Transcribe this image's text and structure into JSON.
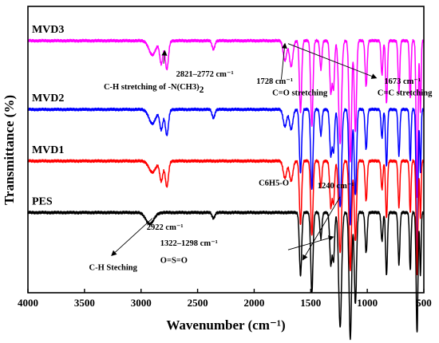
{
  "chart_data": {
    "type": "line",
    "xlabel": "Wavenumber (cm⁻¹)",
    "ylabel": "Transmittance (%)",
    "xlim": [
      4000,
      500
    ],
    "x_reversed": true,
    "x_ticks": [
      "4000",
      "3500",
      "3000",
      "2500",
      "2000",
      "1500",
      "1000",
      "500"
    ],
    "y_ticks_shown": false,
    "series": [
      {
        "name": "MVD3",
        "color": "#ff00ff",
        "baseline": 0.88,
        "peaks": [
          [
            2900,
            0.05,
            30
          ],
          [
            2821,
            0.08,
            14
          ],
          [
            2772,
            0.1,
            14
          ],
          [
            2360,
            0.03,
            12
          ],
          [
            1728,
            0.07,
            15
          ],
          [
            1673,
            0.09,
            15
          ],
          [
            1590,
            0.25,
            10
          ],
          [
            1490,
            0.3,
            10
          ],
          [
            1410,
            0.1,
            9
          ],
          [
            1322,
            0.18,
            10
          ],
          [
            1298,
            0.16,
            9
          ],
          [
            1240,
            0.36,
            13
          ],
          [
            1150,
            0.42,
            11
          ],
          [
            1105,
            0.32,
            10
          ],
          [
            1010,
            0.16,
            9
          ],
          [
            870,
            0.12,
            8
          ],
          [
            830,
            0.22,
            8
          ],
          [
            720,
            0.18,
            8
          ],
          [
            620,
            0.2,
            7
          ],
          [
            560,
            0.55,
            8
          ],
          [
            530,
            0.25,
            6
          ]
        ]
      },
      {
        "name": "MVD2",
        "color": "#0000ff",
        "baseline": 0.64,
        "peaks": [
          [
            2900,
            0.05,
            30
          ],
          [
            2821,
            0.07,
            14
          ],
          [
            2772,
            0.09,
            14
          ],
          [
            2360,
            0.03,
            12
          ],
          [
            1728,
            0.06,
            15
          ],
          [
            1673,
            0.07,
            15
          ],
          [
            1590,
            0.22,
            10
          ],
          [
            1490,
            0.28,
            10
          ],
          [
            1410,
            0.09,
            9
          ],
          [
            1322,
            0.16,
            10
          ],
          [
            1298,
            0.14,
            9
          ],
          [
            1240,
            0.34,
            13
          ],
          [
            1150,
            0.4,
            11
          ],
          [
            1105,
            0.3,
            10
          ],
          [
            1010,
            0.14,
            9
          ],
          [
            870,
            0.1,
            8
          ],
          [
            830,
            0.2,
            8
          ],
          [
            720,
            0.16,
            8
          ],
          [
            620,
            0.18,
            7
          ],
          [
            560,
            0.52,
            8
          ],
          [
            530,
            0.22,
            6
          ]
        ]
      },
      {
        "name": "MVD1",
        "color": "#ff0000",
        "baseline": 0.46,
        "peaks": [
          [
            2900,
            0.04,
            30
          ],
          [
            2821,
            0.07,
            14
          ],
          [
            2772,
            0.09,
            14
          ],
          [
            1728,
            0.06,
            15
          ],
          [
            1673,
            0.07,
            15
          ],
          [
            1590,
            0.22,
            10
          ],
          [
            1490,
            0.26,
            10
          ],
          [
            1410,
            0.09,
            9
          ],
          [
            1322,
            0.16,
            10
          ],
          [
            1298,
            0.14,
            9
          ],
          [
            1240,
            0.32,
            13
          ],
          [
            1150,
            0.38,
            11
          ],
          [
            1105,
            0.28,
            10
          ],
          [
            1010,
            0.14,
            9
          ],
          [
            870,
            0.1,
            8
          ],
          [
            830,
            0.2,
            8
          ],
          [
            720,
            0.16,
            8
          ],
          [
            620,
            0.18,
            7
          ],
          [
            560,
            0.4,
            8
          ],
          [
            530,
            0.2,
            6
          ]
        ]
      },
      {
        "name": "PES",
        "color": "#000000",
        "baseline": 0.28,
        "peaks": [
          [
            2922,
            0.04,
            35
          ],
          [
            2360,
            0.02,
            12
          ],
          [
            1590,
            0.22,
            10
          ],
          [
            1490,
            0.28,
            10
          ],
          [
            1410,
            0.09,
            9
          ],
          [
            1322,
            0.18,
            10
          ],
          [
            1298,
            0.16,
            9
          ],
          [
            1240,
            0.4,
            13
          ],
          [
            1150,
            0.44,
            11
          ],
          [
            1105,
            0.32,
            10
          ],
          [
            1010,
            0.14,
            9
          ],
          [
            870,
            0.1,
            8
          ],
          [
            830,
            0.22,
            8
          ],
          [
            720,
            0.18,
            8
          ],
          [
            620,
            0.2,
            7
          ],
          [
            560,
            0.42,
            8
          ],
          [
            530,
            0.22,
            6
          ]
        ]
      }
    ],
    "annotations": [
      {
        "text": "2821–2772 cm⁻¹",
        "x": 2690,
        "y": 0.755,
        "arrow_from": [
          2800,
          0.8
        ],
        "arrow_to": [
          2790,
          0.845
        ]
      },
      {
        "text": "C-H stretching of -N(CH3)",
        "subscript": "2",
        "x": 3330,
        "y": 0.71
      },
      {
        "text": "1728 cm⁻¹",
        "x": 1980,
        "y": 0.73,
        "arrow_from": [
          1760,
          0.745
        ],
        "arrow_to": [
          1728,
          0.87
        ]
      },
      {
        "text": "C=O stretching",
        "x": 1840,
        "y": 0.69
      },
      {
        "text": "1673 cm⁻¹",
        "x": 850,
        "y": 0.73,
        "arrow_from": [
          1700,
          0.87
        ],
        "arrow_to": [
          920,
          0.75
        ]
      },
      {
        "text": "C=C stretching",
        "x": 910,
        "y": 0.69
      },
      {
        "text": "C6H5-O",
        "x": 1960,
        "y": 0.375
      },
      {
        "text": "1240 cm⁻¹",
        "x": 1440,
        "y": 0.365,
        "arrow_from": [
          1240,
          0.335
        ],
        "arrow_to": [
          1570,
          0.115
        ]
      },
      {
        "text": "1322–1298 cm⁻¹",
        "x": 2830,
        "y": 0.165,
        "arrow_from": [
          1700,
          0.15
        ],
        "arrow_to": [
          1300,
          0.195
        ]
      },
      {
        "text": "O=S=O",
        "x": 2830,
        "y": 0.105
      },
      {
        "text": "2922 cm⁻¹",
        "x": 2950,
        "y": 0.22,
        "arrow_from": [
          2900,
          0.26
        ],
        "arrow_to": [
          3260,
          0.13
        ]
      },
      {
        "text": "C-H Steching",
        "x": 3460,
        "y": 0.08
      }
    ]
  }
}
